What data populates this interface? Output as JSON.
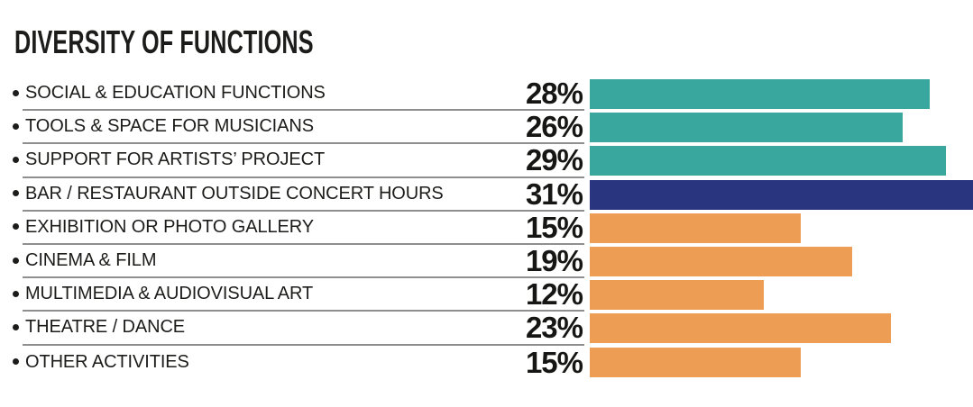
{
  "header": {
    "title": "DIVERSITY OF FUNCTIONS"
  },
  "colors": {
    "teal": "#3AA79F",
    "navy": "#2A3580",
    "orange": "#EE9D54",
    "separator": "#8F8F8F",
    "text": "#1C1C1A",
    "background": "#FFFFFF"
  },
  "icons": {
    "bullet_icon": "•"
  },
  "chart_data": {
    "type": "bar",
    "orientation": "horizontal",
    "title": "DIVERSITY OF FUNCTIONS",
    "unit": "%",
    "categories": [
      "SOCIAL & EDUCATION FUNCTIONS",
      "TOOLS & SPACE FOR MUSICIANS",
      "SUPPORT FOR ARTISTS’ PROJECT",
      "BAR / RESTAURANT OUTSIDE CONCERT HOURS",
      "EXHIBITION OR PHOTO GALLERY",
      "CINEMA & FILM",
      "MULTIMEDIA & AUDIOVISUAL ART",
      "THEATRE / DANCE",
      "OTHER ACTIVITIES"
    ],
    "values": [
      28,
      26,
      29,
      31,
      15,
      19,
      12,
      23,
      15
    ],
    "value_labels": [
      "28%",
      "26%",
      "29%",
      "31%",
      "15%",
      "19%",
      "12%",
      "23%",
      "15%"
    ],
    "bar_colors": [
      "#3AA79F",
      "#3AA79F",
      "#3AA79F",
      "#2A3580",
      "#EE9D54",
      "#EE9D54",
      "#EE9D54",
      "#EE9D54",
      "#EE9D54"
    ],
    "value_label_position": "left-of-bar",
    "axis_ticks_visible": false,
    "grid": false,
    "legend": false
  },
  "rows": [
    {
      "label": "SOCIAL & EDUCATION FUNCTIONS",
      "value": 28,
      "value_label": "28%",
      "color": "#3AA79F",
      "bar_width_pct": 88.7
    },
    {
      "label": "TOOLS & SPACE FOR MUSICIANS",
      "value": 26,
      "value_label": "26%",
      "color": "#3AA79F",
      "bar_width_pct": 81.6
    },
    {
      "label": "SUPPORT FOR ARTISTS’ PROJECT",
      "value": 29,
      "value_label": "29%",
      "color": "#3AA79F",
      "bar_width_pct": 92.9
    },
    {
      "label": "BAR / RESTAURANT OUTSIDE CONCERT HOURS",
      "value": 31,
      "value_label": "31%",
      "color": "#2A3580",
      "bar_width_pct": 100
    },
    {
      "label": "EXHIBITION OR PHOTO GALLERY",
      "value": 15,
      "value_label": "15%",
      "color": "#EE9D54",
      "bar_width_pct": 55.1
    },
    {
      "label": "CINEMA & FILM",
      "value": 19,
      "value_label": "19%",
      "color": "#EE9D54",
      "bar_width_pct": 68.5
    },
    {
      "label": "MULTIMEDIA & AUDIOVISUAL ART",
      "value": 12,
      "value_label": "12%",
      "color": "#EE9D54",
      "bar_width_pct": 45.4
    },
    {
      "label": "THEATRE / DANCE",
      "value": 23,
      "value_label": "23%",
      "color": "#EE9D54",
      "bar_width_pct": 78.6
    },
    {
      "label": "OTHER ACTIVITIES",
      "value": 15,
      "value_label": "15%",
      "color": "#EE9D54",
      "bar_width_pct": 55.1
    }
  ]
}
